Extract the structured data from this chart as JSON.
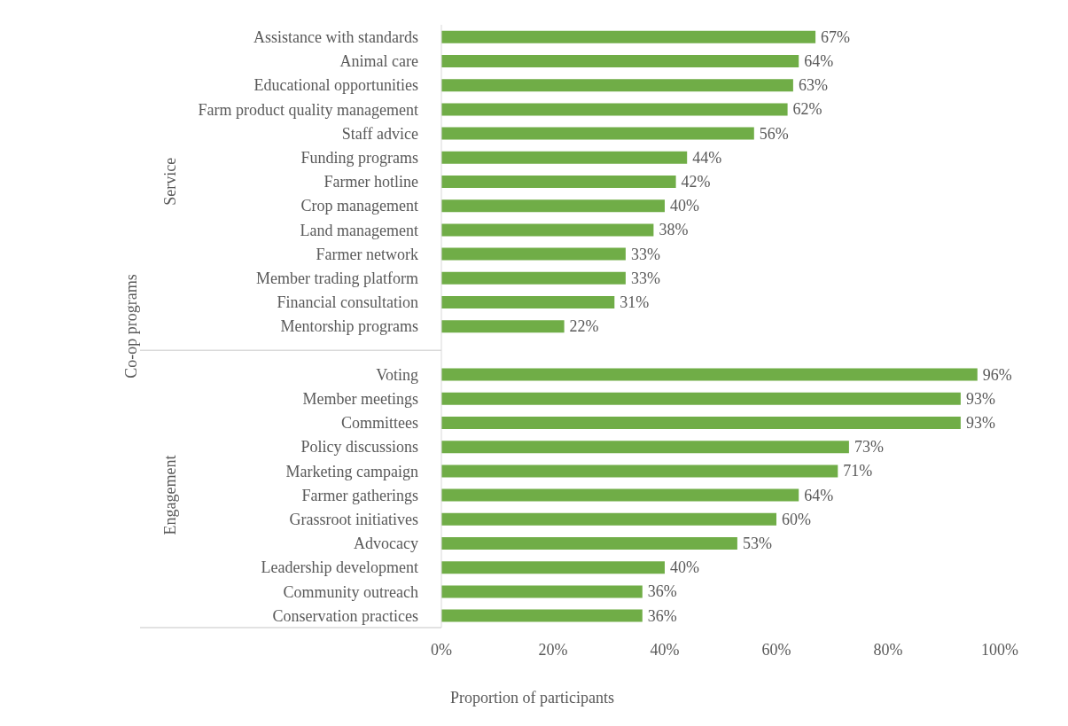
{
  "chart_data": {
    "type": "bar",
    "orientation": "horizontal",
    "xlabel": "Proportion of participants",
    "ylabel": "Co-op programs",
    "annotations": [
      "Service",
      "Engagement"
    ],
    "categories": [
      "Assistance with standards",
      "Animal care",
      "Educational opportunities",
      "Farm product quality management",
      "Staff advice",
      "Funding programs",
      "Farmer hotline",
      "Crop management",
      "Land management",
      "Farmer network",
      "Member trading platform",
      "Financial consultation",
      "Mentorship programs",
      null,
      "Voting",
      "Member meetings",
      "Committees",
      "Policy discussions",
      "Marketing campaign",
      "Farmer gatherings",
      "Grassroot initiatives",
      "Advocacy",
      "Leadership development",
      "Community outreach",
      "Conservation practices"
    ],
    "values": [
      67,
      64,
      63,
      62,
      56,
      44,
      42,
      40,
      38,
      33,
      33,
      31,
      22,
      null,
      96,
      93,
      93,
      73,
      71,
      64,
      60,
      53,
      40,
      36,
      36
    ],
    "value_labels": [
      "67%",
      "64%",
      "63%",
      "62%",
      "56%",
      "44%",
      "42%",
      "40%",
      "38%",
      "33%",
      "33%",
      "31%",
      "22%",
      null,
      "96%",
      "93%",
      "93%",
      "73%",
      "71%",
      "64%",
      "60%",
      "53%",
      "40%",
      "36%",
      "36%"
    ],
    "color": "#70ad47",
    "xlim": [
      0,
      100
    ],
    "xticks": [
      {
        "value": 0,
        "label": "0%"
      },
      {
        "value": 20,
        "label": "20%"
      },
      {
        "value": 40,
        "label": "40%"
      },
      {
        "value": 60,
        "label": "60%"
      },
      {
        "value": 80,
        "label": "80%"
      },
      {
        "value": 100,
        "label": "100%"
      }
    ],
    "grid": false,
    "legend": false
  }
}
